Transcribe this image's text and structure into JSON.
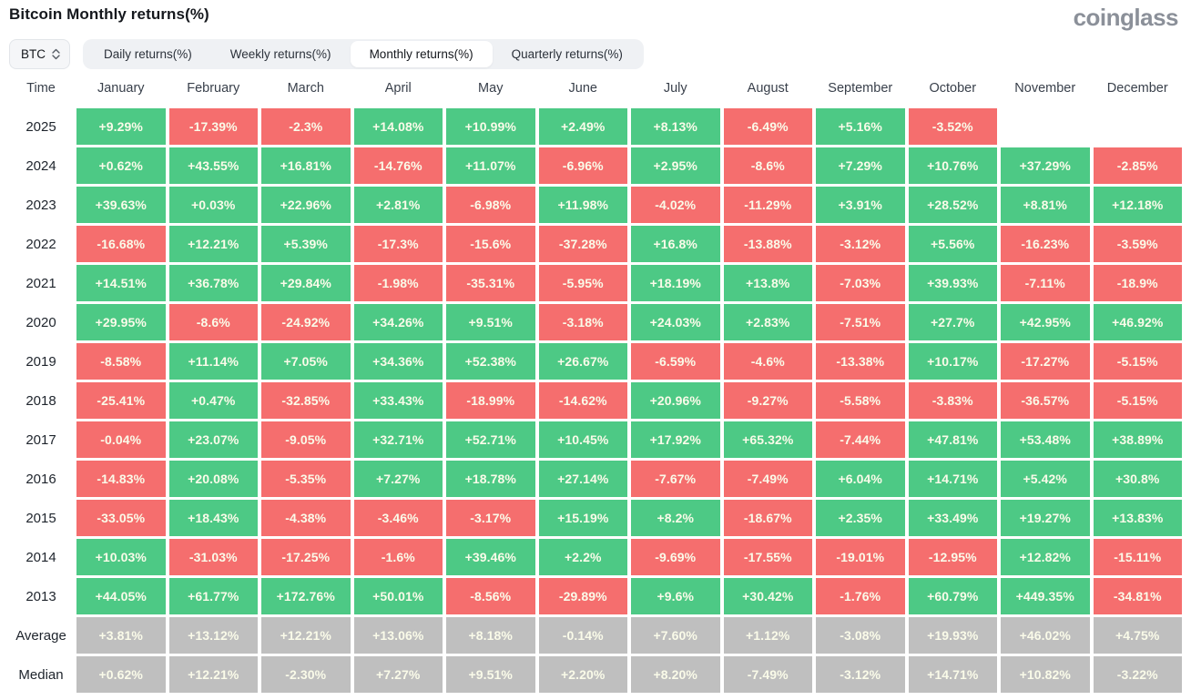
{
  "header": {
    "title": "Bitcoin Monthly returns(%)",
    "logo": "coinglass"
  },
  "controls": {
    "symbol": "BTC",
    "tabs": [
      {
        "label": "Daily returns(%)",
        "active": false
      },
      {
        "label": "Weekly returns(%)",
        "active": false
      },
      {
        "label": "Monthly returns(%)",
        "active": true
      },
      {
        "label": "Quarterly returns(%)",
        "active": false
      }
    ]
  },
  "colors": {
    "positive": "#4DC985",
    "negative": "#F56E6E",
    "summary": "#BFBFBF",
    "cell_text": "#FAFBE9"
  },
  "chart_data": {
    "type": "heatmap",
    "title": "Bitcoin Monthly returns(%)",
    "time_header": "Time",
    "columns": [
      "January",
      "February",
      "March",
      "April",
      "May",
      "June",
      "July",
      "August",
      "September",
      "October",
      "November",
      "December"
    ],
    "rows": [
      {
        "label": "2025",
        "summary": false,
        "values": [
          "+9.29%",
          "-17.39%",
          "-2.3%",
          "+14.08%",
          "+10.99%",
          "+2.49%",
          "+8.13%",
          "-6.49%",
          "+5.16%",
          "-3.52%",
          "",
          ""
        ]
      },
      {
        "label": "2024",
        "summary": false,
        "values": [
          "+0.62%",
          "+43.55%",
          "+16.81%",
          "-14.76%",
          "+11.07%",
          "-6.96%",
          "+2.95%",
          "-8.6%",
          "+7.29%",
          "+10.76%",
          "+37.29%",
          "-2.85%"
        ]
      },
      {
        "label": "2023",
        "summary": false,
        "values": [
          "+39.63%",
          "+0.03%",
          "+22.96%",
          "+2.81%",
          "-6.98%",
          "+11.98%",
          "-4.02%",
          "-11.29%",
          "+3.91%",
          "+28.52%",
          "+8.81%",
          "+12.18%"
        ]
      },
      {
        "label": "2022",
        "summary": false,
        "values": [
          "-16.68%",
          "+12.21%",
          "+5.39%",
          "-17.3%",
          "-15.6%",
          "-37.28%",
          "+16.8%",
          "-13.88%",
          "-3.12%",
          "+5.56%",
          "-16.23%",
          "-3.59%"
        ]
      },
      {
        "label": "2021",
        "summary": false,
        "values": [
          "+14.51%",
          "+36.78%",
          "+29.84%",
          "-1.98%",
          "-35.31%",
          "-5.95%",
          "+18.19%",
          "+13.8%",
          "-7.03%",
          "+39.93%",
          "-7.11%",
          "-18.9%"
        ]
      },
      {
        "label": "2020",
        "summary": false,
        "values": [
          "+29.95%",
          "-8.6%",
          "-24.92%",
          "+34.26%",
          "+9.51%",
          "-3.18%",
          "+24.03%",
          "+2.83%",
          "-7.51%",
          "+27.7%",
          "+42.95%",
          "+46.92%"
        ]
      },
      {
        "label": "2019",
        "summary": false,
        "values": [
          "-8.58%",
          "+11.14%",
          "+7.05%",
          "+34.36%",
          "+52.38%",
          "+26.67%",
          "-6.59%",
          "-4.6%",
          "-13.38%",
          "+10.17%",
          "-17.27%",
          "-5.15%"
        ]
      },
      {
        "label": "2018",
        "summary": false,
        "values": [
          "-25.41%",
          "+0.47%",
          "-32.85%",
          "+33.43%",
          "-18.99%",
          "-14.62%",
          "+20.96%",
          "-9.27%",
          "-5.58%",
          "-3.83%",
          "-36.57%",
          "-5.15%"
        ]
      },
      {
        "label": "2017",
        "summary": false,
        "values": [
          "-0.04%",
          "+23.07%",
          "-9.05%",
          "+32.71%",
          "+52.71%",
          "+10.45%",
          "+17.92%",
          "+65.32%",
          "-7.44%",
          "+47.81%",
          "+53.48%",
          "+38.89%"
        ]
      },
      {
        "label": "2016",
        "summary": false,
        "values": [
          "-14.83%",
          "+20.08%",
          "-5.35%",
          "+7.27%",
          "+18.78%",
          "+27.14%",
          "-7.67%",
          "-7.49%",
          "+6.04%",
          "+14.71%",
          "+5.42%",
          "+30.8%"
        ]
      },
      {
        "label": "2015",
        "summary": false,
        "values": [
          "-33.05%",
          "+18.43%",
          "-4.38%",
          "-3.46%",
          "-3.17%",
          "+15.19%",
          "+8.2%",
          "-18.67%",
          "+2.35%",
          "+33.49%",
          "+19.27%",
          "+13.83%"
        ]
      },
      {
        "label": "2014",
        "summary": false,
        "values": [
          "+10.03%",
          "-31.03%",
          "-17.25%",
          "-1.6%",
          "+39.46%",
          "+2.2%",
          "-9.69%",
          "-17.55%",
          "-19.01%",
          "-12.95%",
          "+12.82%",
          "-15.11%"
        ]
      },
      {
        "label": "2013",
        "summary": false,
        "values": [
          "+44.05%",
          "+61.77%",
          "+172.76%",
          "+50.01%",
          "-8.56%",
          "-29.89%",
          "+9.6%",
          "+30.42%",
          "-1.76%",
          "+60.79%",
          "+449.35%",
          "-34.81%"
        ]
      },
      {
        "label": "Average",
        "summary": true,
        "values": [
          "+3.81%",
          "+13.12%",
          "+12.21%",
          "+13.06%",
          "+8.18%",
          "-0.14%",
          "+7.60%",
          "+1.12%",
          "-3.08%",
          "+19.93%",
          "+46.02%",
          "+4.75%"
        ]
      },
      {
        "label": "Median",
        "summary": true,
        "values": [
          "+0.62%",
          "+12.21%",
          "-2.30%",
          "+7.27%",
          "+9.51%",
          "+2.20%",
          "+8.20%",
          "-7.49%",
          "-3.12%",
          "+14.71%",
          "+10.82%",
          "-3.22%"
        ]
      }
    ]
  }
}
